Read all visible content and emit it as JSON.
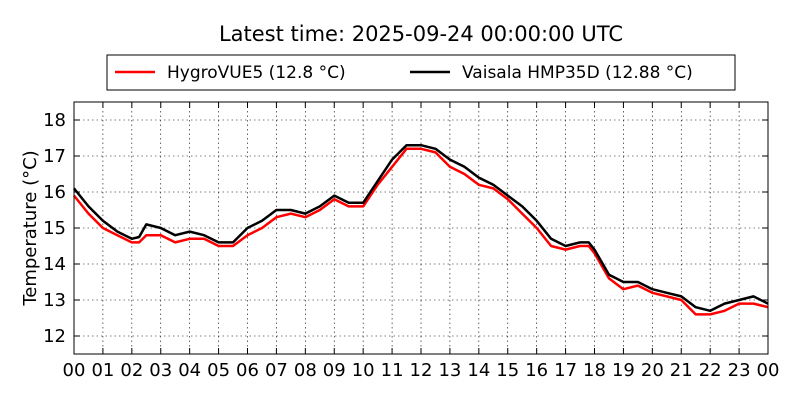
{
  "chart_data": {
    "type": "line",
    "title": "Latest time: 2025-09-24 00:00:00 UTC",
    "xlabel": "",
    "ylabel": "Temperature (°C)",
    "xlim": [
      0,
      24
    ],
    "ylim": [
      11.5,
      18.5
    ],
    "x_ticks": [
      "00",
      "01",
      "02",
      "03",
      "04",
      "05",
      "06",
      "07",
      "08",
      "09",
      "10",
      "11",
      "12",
      "13",
      "14",
      "15",
      "16",
      "17",
      "18",
      "19",
      "20",
      "21",
      "22",
      "23",
      "00"
    ],
    "y_ticks": [
      12,
      13,
      14,
      15,
      16,
      17,
      18
    ],
    "grid": true,
    "legend_placement": "top",
    "x": [
      0,
      0.5,
      1,
      1.5,
      2,
      2.25,
      2.5,
      3,
      3.5,
      4,
      4.5,
      5,
      5.5,
      6,
      6.5,
      7,
      7.5,
      8,
      8.5,
      9,
      9.5,
      10,
      10.5,
      11,
      11.5,
      12,
      12.5,
      13,
      13.5,
      14,
      14.5,
      15,
      15.5,
      16,
      16.5,
      17,
      17.5,
      17.8,
      18,
      18.5,
      19,
      19.5,
      20,
      20.5,
      21,
      21.5,
      22,
      22.5,
      23,
      23.5,
      24
    ],
    "series": [
      {
        "name": "HygroVUE5 (12.8 °C)",
        "color": "#ff0000",
        "values": [
          15.9,
          15.4,
          15.0,
          14.8,
          14.6,
          14.6,
          14.8,
          14.8,
          14.6,
          14.7,
          14.7,
          14.5,
          14.5,
          14.8,
          15.0,
          15.3,
          15.4,
          15.3,
          15.5,
          15.8,
          15.6,
          15.6,
          16.2,
          16.7,
          17.2,
          17.2,
          17.1,
          16.7,
          16.5,
          16.2,
          16.1,
          15.8,
          15.4,
          15.0,
          14.5,
          14.4,
          14.5,
          14.5,
          14.3,
          13.6,
          13.3,
          13.4,
          13.2,
          13.1,
          13.0,
          12.6,
          12.6,
          12.7,
          12.9,
          12.9,
          12.8
        ]
      },
      {
        "name": "Vaisala HMP35D (12.88 °C)",
        "color": "#000000",
        "values": [
          16.1,
          15.6,
          15.2,
          14.9,
          14.7,
          14.75,
          15.1,
          15.0,
          14.8,
          14.9,
          14.8,
          14.6,
          14.6,
          15.0,
          15.2,
          15.5,
          15.5,
          15.4,
          15.6,
          15.9,
          15.7,
          15.7,
          16.3,
          16.9,
          17.3,
          17.3,
          17.2,
          16.9,
          16.7,
          16.4,
          16.2,
          15.9,
          15.6,
          15.2,
          14.7,
          14.5,
          14.6,
          14.6,
          14.4,
          13.7,
          13.5,
          13.5,
          13.3,
          13.2,
          13.1,
          12.8,
          12.7,
          12.9,
          13.0,
          13.1,
          12.9
        ]
      }
    ]
  }
}
